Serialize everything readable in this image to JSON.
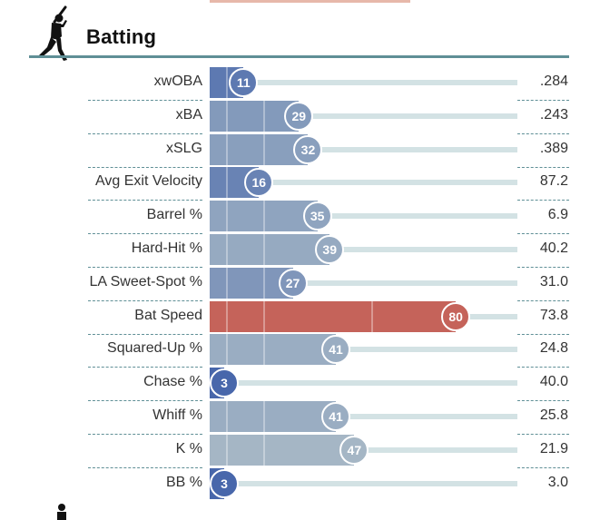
{
  "section": {
    "title": "Batting",
    "icon": "batter-icon"
  },
  "colors": {
    "rule": "#5f8f96",
    "track": "#d3e2e4",
    "low": "#3d5da8",
    "mid": "#aabbc6",
    "high": "#c5635a"
  },
  "metrics": [
    {
      "label": "xwOBA",
      "percentile": 11,
      "value": ".284"
    },
    {
      "label": "xBA",
      "percentile": 29,
      "value": ".243"
    },
    {
      "label": "xSLG",
      "percentile": 32,
      "value": ".389"
    },
    {
      "label": "Avg Exit Velocity",
      "percentile": 16,
      "value": "87.2"
    },
    {
      "label": "Barrel %",
      "percentile": 35,
      "value": "6.9"
    },
    {
      "label": "Hard-Hit %",
      "percentile": 39,
      "value": "40.2"
    },
    {
      "label": "LA Sweet-Spot %",
      "percentile": 27,
      "value": "31.0"
    },
    {
      "label": "Bat Speed",
      "percentile": 80,
      "value": "73.8"
    },
    {
      "label": "Squared-Up %",
      "percentile": 41,
      "value": "24.8"
    },
    {
      "label": "Chase %",
      "percentile": 3,
      "value": "40.0"
    },
    {
      "label": "Whiff %",
      "percentile": 41,
      "value": "25.8"
    },
    {
      "label": "K %",
      "percentile": 47,
      "value": "21.9"
    },
    {
      "label": "BB %",
      "percentile": 3,
      "value": "3.0"
    }
  ]
}
